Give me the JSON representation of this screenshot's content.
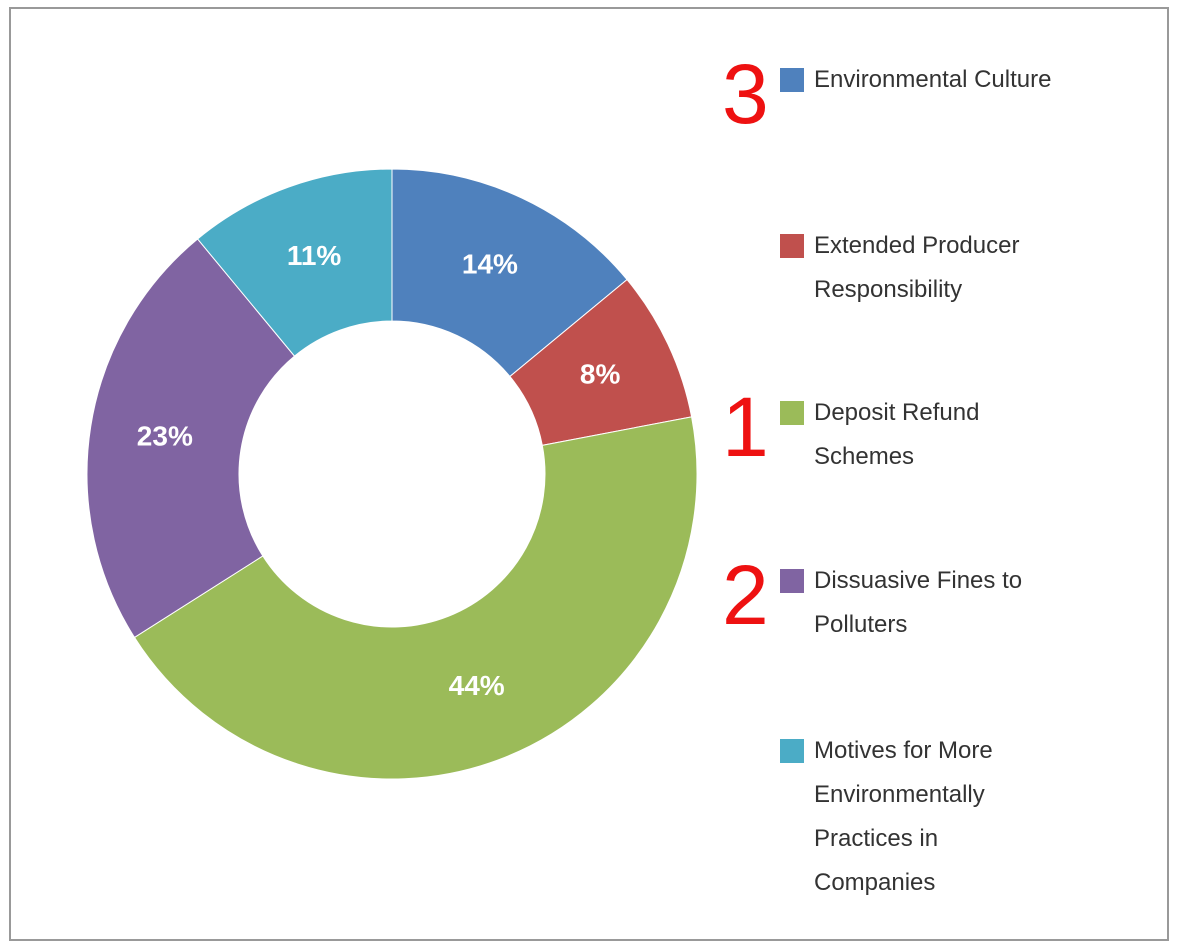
{
  "chart_data": {
    "type": "donut",
    "categories": [
      "Environmental Culture",
      "Extended Producer Responsibility",
      "Deposit Refund Schemes",
      "Dissuasive Fines to Polluters",
      "Motives for More Environmentally Practices in Companies"
    ],
    "values": [
      14,
      8,
      44,
      23,
      11
    ],
    "value_labels": [
      "14%",
      "8%",
      "44%",
      "23%",
      "11%"
    ],
    "colors": [
      "#4f81bd",
      "#c0504d",
      "#9bbb59",
      "#8064a2",
      "#4bacc6"
    ],
    "rank_annotations": [
      "3",
      null,
      "1",
      "2",
      null
    ]
  }
}
